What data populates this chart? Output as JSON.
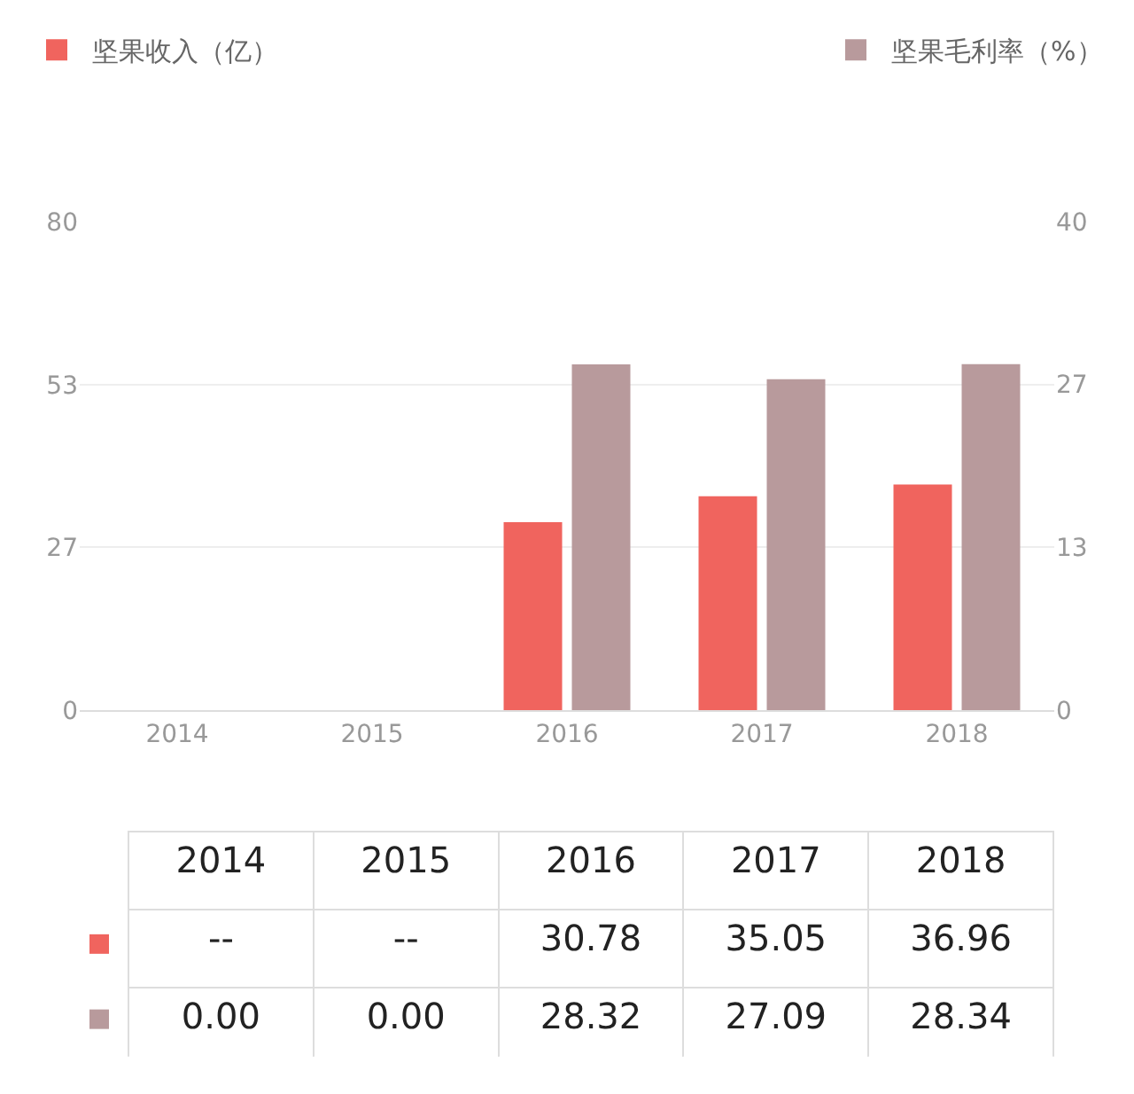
{
  "chart_data": {
    "type": "bar",
    "categories": [
      "2014",
      "2015",
      "2016",
      "2017",
      "2018"
    ],
    "series": [
      {
        "name": "坚果收入（亿）",
        "color": "#f0645e",
        "values": [
          null,
          null,
          30.78,
          35.05,
          36.96
        ],
        "value_labels": [
          "--",
          "--",
          "30.78",
          "35.05",
          "36.96"
        ]
      },
      {
        "name": "坚果毛利率（%）",
        "color": "#b89a9c",
        "axis": "y2",
        "values": [
          0,
          0,
          28.32,
          27.09,
          28.34
        ],
        "value_labels": [
          "0.00",
          "0.00",
          "28.32",
          "27.09",
          "28.34"
        ]
      }
    ],
    "ylim": [
      0,
      80
    ],
    "yticks": [
      0,
      {
        "value": 26.67,
        "label": "27"
      },
      {
        "value": 53.33,
        "label": "53"
      },
      80
    ],
    "y2lim": [
      0,
      40
    ],
    "y2ticks": [
      0,
      {
        "value": 13.33,
        "label": "13"
      },
      {
        "value": 26.67,
        "label": "27"
      },
      40
    ],
    "grid": "y",
    "legend": "top"
  }
}
